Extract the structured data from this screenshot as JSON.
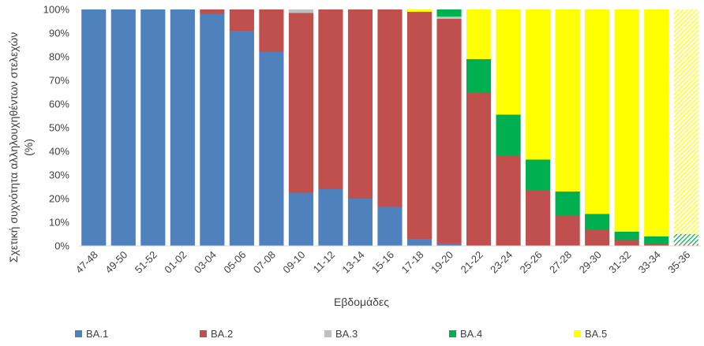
{
  "chart_data": {
    "type": "bar",
    "stacked": true,
    "percent": true,
    "xlabel": "Εβδομάδες",
    "ylabel": "Σχετική συχνότητα αλληλουχηθέντων στελεχών (%)",
    "ylabel_lines": [
      "Σχετική συχνότητα αλληλουχηθέντων στελεχών",
      "(%)"
    ],
    "ylim": [
      0,
      100
    ],
    "yticks": [
      "0%",
      "10%",
      "20%",
      "30%",
      "40%",
      "50%",
      "60%",
      "70%",
      "80%",
      "90%",
      "100%"
    ],
    "grid": false,
    "legend_position": "bottom",
    "categories": [
      "47-48",
      "49-50",
      "51-52",
      "01-02",
      "03-04",
      "05-06",
      "07-08",
      "09-10",
      "11-12",
      "13-14",
      "15-16",
      "17-18",
      "19-20",
      "21-22",
      "23-24",
      "25-26",
      "27-28",
      "29-30",
      "31-32",
      "33-34",
      "35-36"
    ],
    "hatched_category": "35-36",
    "series": [
      {
        "name": "BA.1",
        "color": "#4f81bd",
        "values": [
          100,
          100,
          100,
          100,
          98,
          91,
          82,
          22.5,
          24,
          20,
          16.5,
          3,
          1,
          0,
          0,
          0,
          0,
          0,
          0,
          0,
          0
        ]
      },
      {
        "name": "BA.2",
        "color": "#c0504d",
        "values": [
          0,
          0,
          0,
          0,
          2,
          9,
          18,
          76,
          76,
          80,
          83.5,
          96,
          95,
          65,
          38,
          23.5,
          13,
          7,
          2.5,
          1,
          1
        ]
      },
      {
        "name": "BA.3",
        "color": "#bfbfbf",
        "values": [
          0,
          0,
          0,
          0,
          0,
          0,
          0,
          1.5,
          0,
          0,
          0,
          0,
          1,
          0,
          0,
          0,
          0,
          0,
          0,
          0,
          0
        ]
      },
      {
        "name": "BA.4",
        "color": "#00b050",
        "values": [
          0,
          0,
          0,
          0,
          0,
          0,
          0,
          0,
          0,
          0,
          0,
          0,
          3,
          14,
          17.5,
          13,
          10,
          6.5,
          3.5,
          3,
          4
        ]
      },
      {
        "name": "BA.5",
        "color": "#ffff00",
        "values": [
          0,
          0,
          0,
          0,
          0,
          0,
          0,
          0,
          0,
          0,
          0,
          1,
          0,
          21,
          44.5,
          63.5,
          77,
          86.5,
          94,
          96,
          95
        ]
      }
    ]
  }
}
